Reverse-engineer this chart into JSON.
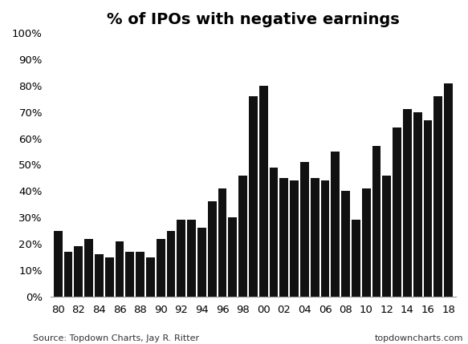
{
  "title": "% of IPOs with negative earnings",
  "years": [
    1980,
    1981,
    1982,
    1983,
    1984,
    1985,
    1986,
    1987,
    1988,
    1989,
    1990,
    1991,
    1992,
    1993,
    1994,
    1995,
    1996,
    1997,
    1998,
    1999,
    2000,
    2001,
    2002,
    2003,
    2004,
    2005,
    2006,
    2007,
    2008,
    2009,
    2010,
    2011,
    2012,
    2013,
    2014,
    2015,
    2016,
    2017,
    2018
  ],
  "values": [
    0.25,
    0.17,
    0.19,
    0.22,
    0.16,
    0.15,
    0.21,
    0.17,
    0.17,
    0.15,
    0.22,
    0.25,
    0.29,
    0.29,
    0.26,
    0.36,
    0.41,
    0.3,
    0.46,
    0.76,
    0.8,
    0.49,
    0.45,
    0.44,
    0.51,
    0.45,
    0.44,
    0.55,
    0.4,
    0.29,
    0.41,
    0.57,
    0.46,
    0.64,
    0.71,
    0.7,
    0.67,
    0.76,
    0.81
  ],
  "bar_color": "#111111",
  "background_color": "#ffffff",
  "ylim": [
    0,
    1.0
  ],
  "yticks": [
    0.0,
    0.1,
    0.2,
    0.3,
    0.4,
    0.5,
    0.6,
    0.7,
    0.8,
    0.9,
    1.0
  ],
  "xtick_labels": [
    "80",
    "82",
    "84",
    "86",
    "88",
    "90",
    "92",
    "94",
    "96",
    "98",
    "00",
    "02",
    "04",
    "06",
    "08",
    "10",
    "12",
    "14",
    "16",
    "18"
  ],
  "xtick_positions": [
    1980,
    1982,
    1984,
    1986,
    1988,
    1990,
    1992,
    1994,
    1996,
    1998,
    2000,
    2002,
    2004,
    2006,
    2008,
    2010,
    2012,
    2014,
    2016,
    2018
  ],
  "source_left": "Source: Topdown Charts, Jay R. Ritter",
  "source_right": "topdowncharts.com",
  "title_fontsize": 14,
  "tick_fontsize": 9.5,
  "source_fontsize": 8
}
